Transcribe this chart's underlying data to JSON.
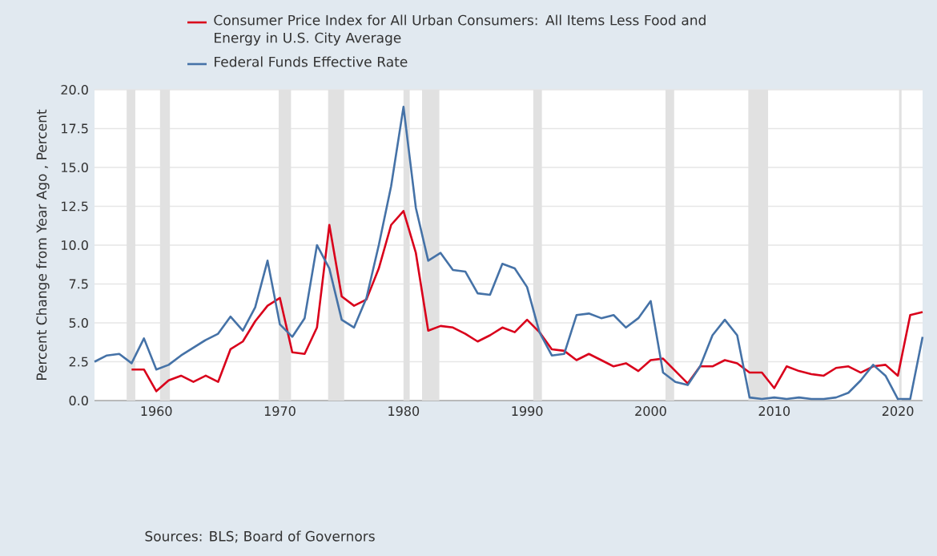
{
  "chart_data": {
    "type": "line",
    "ylabel": "Percent Change from Year Ago , Percent",
    "x": [
      1955,
      1956,
      1957,
      1958,
      1959,
      1960,
      1961,
      1962,
      1963,
      1964,
      1965,
      1966,
      1967,
      1968,
      1969,
      1970,
      1971,
      1972,
      1973,
      1974,
      1975,
      1976,
      1977,
      1978,
      1979,
      1980,
      1981,
      1982,
      1983,
      1984,
      1985,
      1986,
      1987,
      1988,
      1989,
      1990,
      1991,
      1992,
      1993,
      1994,
      1995,
      1996,
      1997,
      1998,
      1999,
      2000,
      2001,
      2002,
      2003,
      2004,
      2005,
      2006,
      2007,
      2008,
      2009,
      2010,
      2011,
      2012,
      2013,
      2014,
      2015,
      2016,
      2017,
      2018,
      2019,
      2020,
      2021,
      2022
    ],
    "series": [
      {
        "name": "Consumer Price Index for All Urban Consumers: All Items Less Food and Energy in U.S. City Average",
        "color": "#d9001b",
        "values": [
          null,
          null,
          null,
          2.0,
          2.0,
          0.6,
          1.3,
          1.6,
          1.2,
          1.6,
          1.2,
          3.3,
          3.8,
          5.1,
          6.1,
          6.6,
          3.1,
          3.0,
          4.7,
          11.3,
          6.7,
          6.1,
          6.5,
          8.5,
          11.3,
          12.2,
          9.5,
          4.5,
          4.8,
          4.7,
          4.3,
          3.8,
          4.2,
          4.7,
          4.4,
          5.2,
          4.4,
          3.3,
          3.2,
          2.6,
          3.0,
          2.6,
          2.2,
          2.4,
          1.9,
          2.6,
          2.7,
          1.9,
          1.1,
          2.2,
          2.2,
          2.6,
          2.4,
          1.8,
          1.8,
          0.8,
          2.2,
          1.9,
          1.7,
          1.6,
          2.1,
          2.2,
          1.8,
          2.2,
          2.3,
          1.6,
          5.5,
          5.7
        ]
      },
      {
        "name": "Federal Funds Effective Rate",
        "color": "#4572a7",
        "values": [
          2.5,
          2.9,
          3.0,
          2.4,
          4.0,
          2.0,
          2.3,
          2.9,
          3.4,
          3.9,
          4.3,
          5.4,
          4.5,
          6.0,
          9.0,
          4.9,
          4.1,
          5.3,
          10.0,
          8.5,
          5.2,
          4.7,
          6.6,
          10.0,
          13.8,
          18.9,
          12.4,
          9.0,
          9.5,
          8.4,
          8.3,
          6.9,
          6.8,
          8.8,
          8.5,
          7.3,
          4.4,
          2.9,
          3.0,
          5.5,
          5.6,
          5.3,
          5.5,
          4.7,
          5.3,
          6.4,
          1.8,
          1.2,
          1.0,
          2.2,
          4.2,
          5.2,
          4.2,
          0.2,
          0.1,
          0.2,
          0.1,
          0.2,
          0.1,
          0.1,
          0.2,
          0.5,
          1.3,
          2.3,
          1.6,
          0.1,
          0.1,
          4.1
        ]
      }
    ],
    "xlim": [
      1955,
      2022
    ],
    "xticks": [
      1960,
      1970,
      1980,
      1990,
      2000,
      2010,
      2020
    ],
    "ylim": [
      0,
      20
    ],
    "yticks": [
      {
        "value": 0,
        "label": "0.0"
      },
      {
        "value": 2.5,
        "label": "2.5"
      },
      {
        "value": 5,
        "label": "5.0"
      },
      {
        "value": 7.5,
        "label": "7.5"
      },
      {
        "value": 10,
        "label": "10.0"
      },
      {
        "value": 12.5,
        "label": "12.5"
      },
      {
        "value": 15,
        "label": "15.0"
      },
      {
        "value": 17.5,
        "label": "17.5"
      },
      {
        "value": 20,
        "label": "20.0"
      }
    ],
    "bands": [
      {
        "axis": "x",
        "from": 1957.6,
        "to": 1958.3,
        "color": "#e1e1e1"
      },
      {
        "axis": "x",
        "from": 1960.3,
        "to": 1961.1,
        "color": "#e1e1e1"
      },
      {
        "axis": "x",
        "from": 1969.9,
        "to": 1970.9,
        "color": "#e1e1e1"
      },
      {
        "axis": "x",
        "from": 1973.9,
        "to": 1975.2,
        "color": "#e1e1e1"
      },
      {
        "axis": "x",
        "from": 1980.0,
        "to": 1980.5,
        "color": "#e1e1e1"
      },
      {
        "axis": "x",
        "from": 1981.5,
        "to": 1982.9,
        "color": "#e1e1e1"
      },
      {
        "axis": "x",
        "from": 1990.5,
        "to": 1991.2,
        "color": "#e1e1e1"
      },
      {
        "axis": "x",
        "from": 2001.2,
        "to": 2001.9,
        "color": "#e1e1e1"
      },
      {
        "axis": "x",
        "from": 2007.9,
        "to": 2009.5,
        "color": "#e1e1e1"
      },
      {
        "axis": "x",
        "from": 2020.1,
        "to": 2020.3,
        "color": "#e1e1e1"
      }
    ],
    "grid": "y",
    "legend": "top",
    "marker": "none",
    "line_style": "solid",
    "annotations": [
      "Sources: BLS; Board of Governors"
    ]
  }
}
